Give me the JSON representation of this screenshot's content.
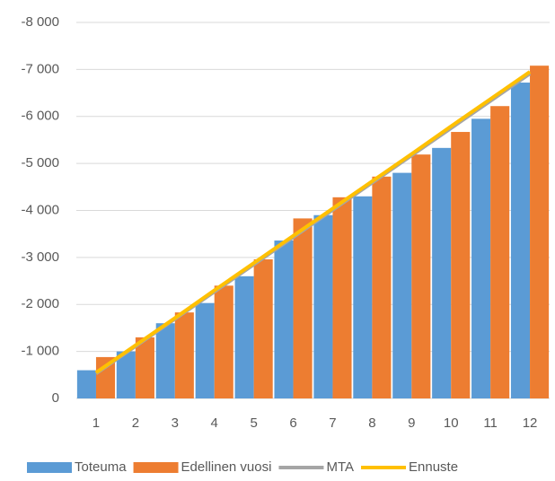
{
  "chart_data": {
    "type": "bar",
    "categories": [
      "1",
      "2",
      "3",
      "4",
      "5",
      "6",
      "7",
      "8",
      "9",
      "10",
      "11",
      "12"
    ],
    "series": [
      {
        "name": "Toteuma",
        "type": "bar",
        "color": "#5b9bd5",
        "values": [
          -600,
          -1000,
          -1600,
          -2030,
          -2600,
          -3360,
          -3900,
          -4300,
          -4800,
          -5330,
          -5950,
          -6720
        ]
      },
      {
        "name": "Edellinen vuosi",
        "type": "bar",
        "color": "#ed7d31",
        "values": [
          -880,
          -1300,
          -1830,
          -2400,
          -2960,
          -3830,
          -4280,
          -4720,
          -5190,
          -5670,
          -6220,
          -7080
        ]
      },
      {
        "name": "MTA",
        "type": "line",
        "color": "#a5a5a5",
        "values": [
          -530,
          -1110,
          -1690,
          -2270,
          -2850,
          -3430,
          -4010,
          -4590,
          -5170,
          -5750,
          -6330,
          -6910
        ]
      },
      {
        "name": "Ennuste",
        "type": "line",
        "color": "#ffc000",
        "values": [
          -550,
          -1130,
          -1710,
          -2300,
          -2880,
          -3460,
          -4040,
          -4620,
          -5200,
          -5790,
          -6370,
          -6950
        ]
      }
    ],
    "ylim": [
      0,
      -8000
    ],
    "yticks": [
      0,
      {
        "value": -1000,
        "label": "-1 000"
      },
      {
        "value": -2000,
        "label": "-2 000"
      },
      {
        "value": -3000,
        "label": "-3 000"
      },
      {
        "value": -4000,
        "label": "-4 000"
      },
      {
        "value": -5000,
        "label": "-5 000"
      },
      {
        "value": -6000,
        "label": "-6 000"
      },
      {
        "value": -7000,
        "label": "-7 000"
      },
      {
        "value": -8000,
        "label": "-8 000"
      }
    ],
    "grid": true,
    "legend": "bottom"
  }
}
